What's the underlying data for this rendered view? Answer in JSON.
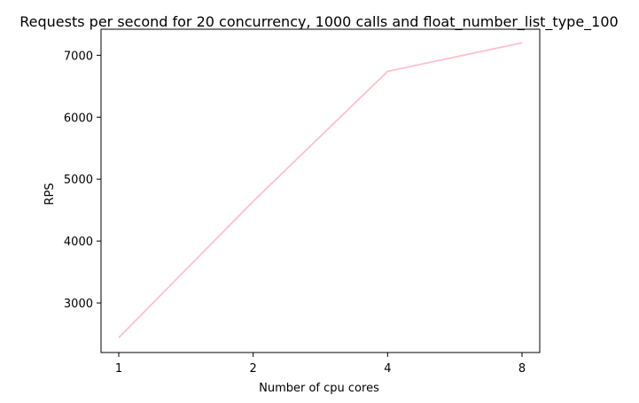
{
  "chart_data": {
    "type": "line",
    "title": "Requests per second for 20 concurrency, 1000 calls and float_number_list_type_100",
    "xlabel": "Number of cpu cores",
    "ylabel": "RPS",
    "categories": [
      "1",
      "2",
      "4",
      "8"
    ],
    "y_ticks": [
      "3000",
      "4000",
      "5000",
      "6000",
      "7000"
    ],
    "ylim": [
      2200,
      7420
    ],
    "grid": false,
    "series": [
      {
        "values": [
          2440,
          4640,
          6740,
          7200
        ],
        "color": "#ffc0cb"
      }
    ]
  }
}
